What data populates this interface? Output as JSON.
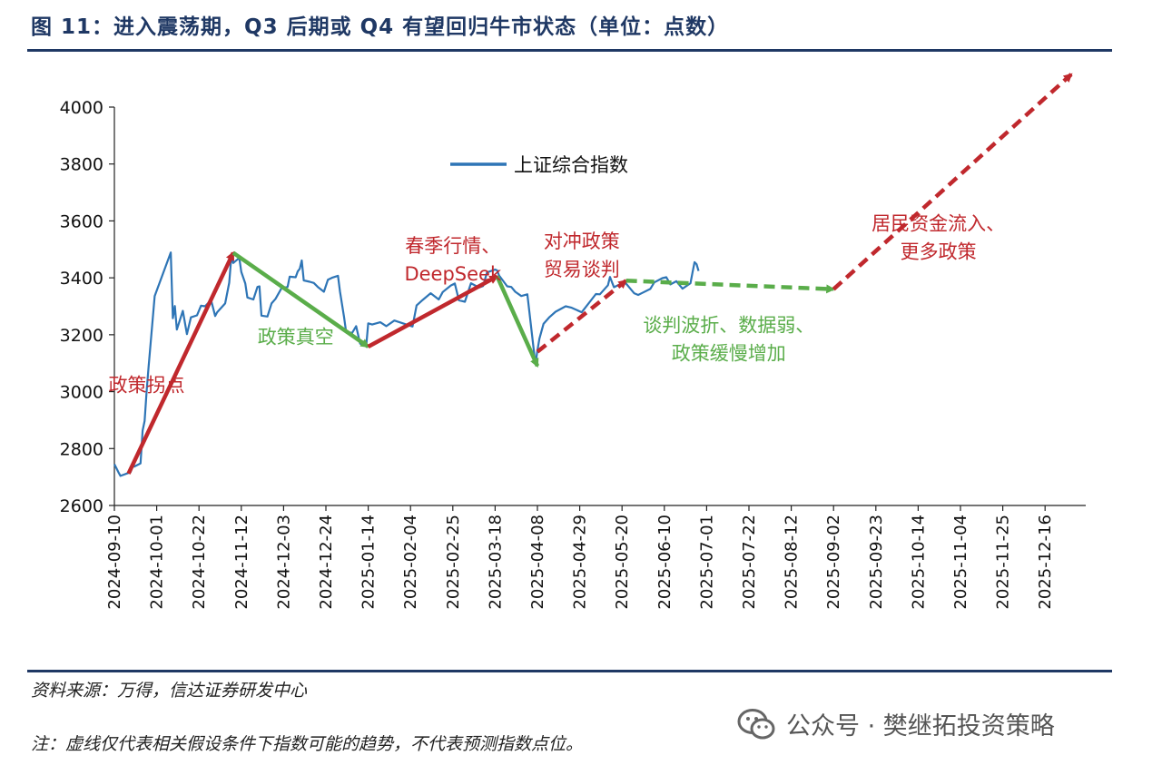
{
  "figure": {
    "title": "图 11：进入震荡期，Q3 后期或 Q4 有望回归牛市状态（单位：点数）",
    "source": "资料来源：万得，信达证券研发中心",
    "note": "注：虚线仅代表相关假设条件下指数可能的趋势，不代表预测指数点位。",
    "watermark": "公众号 · 樊继拓投资策略"
  },
  "chart_data": {
    "type": "line",
    "ylim": [
      2600,
      4000
    ],
    "yticks": [
      2600,
      2800,
      3000,
      3200,
      3400,
      3600,
      3800,
      4000
    ],
    "xticks": [
      "2024-09-10",
      "2024-10-01",
      "2024-10-22",
      "2024-11-12",
      "2024-12-03",
      "2024-12-24",
      "2025-01-14",
      "2025-02-04",
      "2025-02-25",
      "2025-03-18",
      "2025-04-08",
      "2025-04-29",
      "2025-05-20",
      "2025-06-10",
      "2025-07-01",
      "2025-07-22",
      "2025-08-12",
      "2025-09-02",
      "2025-09-23",
      "2025-10-14",
      "2025-11-04",
      "2025-11-25",
      "2025-12-16"
    ],
    "series": [
      {
        "name": "上证综合指数",
        "color": "#2e75b6",
        "points": [
          [
            "2024-09-10",
            2745
          ],
          [
            "2024-09-12",
            2717
          ],
          [
            "2024-09-13",
            2704
          ],
          [
            "2024-09-18",
            2717
          ],
          [
            "2024-09-19",
            2736
          ],
          [
            "2024-09-20",
            2737
          ],
          [
            "2024-09-23",
            2748
          ],
          [
            "2024-09-24",
            2863
          ],
          [
            "2024-09-25",
            2897
          ],
          [
            "2024-09-26",
            3001
          ],
          [
            "2024-09-27",
            3088
          ],
          [
            "2024-09-30",
            3336
          ],
          [
            "2024-10-08",
            3489
          ],
          [
            "2024-10-09",
            3258
          ],
          [
            "2024-10-10",
            3301
          ],
          [
            "2024-10-11",
            3218
          ],
          [
            "2024-10-14",
            3284
          ],
          [
            "2024-10-16",
            3202
          ],
          [
            "2024-10-18",
            3261
          ],
          [
            "2024-10-21",
            3268
          ],
          [
            "2024-10-23",
            3302
          ],
          [
            "2024-10-25",
            3300
          ],
          [
            "2024-10-28",
            3322
          ],
          [
            "2024-10-30",
            3266
          ],
          [
            "2024-10-31",
            3279
          ],
          [
            "2024-11-04",
            3310
          ],
          [
            "2024-11-06",
            3383
          ],
          [
            "2024-11-07",
            3470
          ],
          [
            "2024-11-08",
            3452
          ],
          [
            "2024-11-11",
            3470
          ],
          [
            "2024-11-12",
            3421
          ],
          [
            "2024-11-14",
            3380
          ],
          [
            "2024-11-15",
            3331
          ],
          [
            "2024-11-18",
            3324
          ],
          [
            "2024-11-20",
            3368
          ],
          [
            "2024-11-21",
            3370
          ],
          [
            "2024-11-22",
            3267
          ],
          [
            "2024-11-25",
            3264
          ],
          [
            "2024-11-27",
            3310
          ],
          [
            "2024-11-29",
            3326
          ],
          [
            "2024-12-02",
            3364
          ],
          [
            "2024-12-05",
            3368
          ],
          [
            "2024-12-06",
            3404
          ],
          [
            "2024-12-09",
            3402
          ],
          [
            "2024-12-10",
            3422
          ],
          [
            "2024-12-11",
            3432
          ],
          [
            "2024-12-12",
            3461
          ],
          [
            "2024-12-13",
            3391
          ],
          [
            "2024-12-16",
            3386
          ],
          [
            "2024-12-18",
            3382
          ],
          [
            "2024-12-20",
            3368
          ],
          [
            "2024-12-23",
            3351
          ],
          [
            "2024-12-25",
            3393
          ],
          [
            "2024-12-27",
            3400
          ],
          [
            "2024-12-30",
            3407
          ],
          [
            "2024-12-31",
            3352
          ],
          [
            "2025-01-02",
            3262
          ],
          [
            "2025-01-03",
            3211
          ],
          [
            "2025-01-06",
            3206
          ],
          [
            "2025-01-08",
            3230
          ],
          [
            "2025-01-10",
            3169
          ],
          [
            "2025-01-13",
            3160
          ],
          [
            "2025-01-14",
            3240
          ],
          [
            "2025-01-16",
            3236
          ],
          [
            "2025-01-20",
            3244
          ],
          [
            "2025-01-23",
            3230
          ],
          [
            "2025-01-27",
            3250
          ],
          [
            "2025-02-05",
            3229
          ],
          [
            "2025-02-07",
            3303
          ],
          [
            "2025-02-10",
            3322
          ],
          [
            "2025-02-14",
            3346
          ],
          [
            "2025-02-18",
            3324
          ],
          [
            "2025-02-20",
            3350
          ],
          [
            "2025-02-24",
            3373
          ],
          [
            "2025-02-26",
            3380
          ],
          [
            "2025-02-28",
            3321
          ],
          [
            "2025-03-03",
            3316
          ],
          [
            "2025-03-06",
            3381
          ],
          [
            "2025-03-10",
            3366
          ],
          [
            "2025-03-12",
            3371
          ],
          [
            "2025-03-14",
            3419
          ],
          [
            "2025-03-18",
            3429
          ],
          [
            "2025-03-19",
            3426
          ],
          [
            "2025-03-20",
            3408
          ],
          [
            "2025-03-24",
            3370
          ],
          [
            "2025-03-26",
            3368
          ],
          [
            "2025-03-28",
            3351
          ],
          [
            "2025-03-31",
            3336
          ],
          [
            "2025-04-03",
            3342
          ],
          [
            "2025-04-07",
            3096
          ],
          [
            "2025-04-08",
            3145
          ],
          [
            "2025-04-09",
            3186
          ],
          [
            "2025-04-11",
            3238
          ],
          [
            "2025-04-14",
            3262
          ],
          [
            "2025-04-17",
            3281
          ],
          [
            "2025-04-22",
            3300
          ],
          [
            "2025-04-25",
            3295
          ],
          [
            "2025-04-30",
            3279
          ],
          [
            "2025-05-07",
            3343
          ],
          [
            "2025-05-09",
            3342
          ],
          [
            "2025-05-13",
            3374
          ],
          [
            "2025-05-14",
            3403
          ],
          [
            "2025-05-16",
            3367
          ],
          [
            "2025-05-20",
            3381
          ],
          [
            "2025-05-22",
            3380
          ],
          [
            "2025-05-26",
            3346
          ],
          [
            "2025-05-28",
            3340
          ],
          [
            "2025-05-30",
            3347
          ],
          [
            "2025-06-03",
            3361
          ],
          [
            "2025-06-05",
            3384
          ],
          [
            "2025-06-09",
            3399
          ],
          [
            "2025-06-11",
            3402
          ],
          [
            "2025-06-13",
            3377
          ],
          [
            "2025-06-16",
            3388
          ],
          [
            "2025-06-19",
            3362
          ],
          [
            "2025-06-23",
            3381
          ],
          [
            "2025-06-24",
            3420
          ],
          [
            "2025-06-25",
            3455
          ],
          [
            "2025-06-26",
            3448
          ],
          [
            "2025-06-27",
            3424
          ]
        ]
      }
    ],
    "trend_arrows": [
      {
        "color": "#c0282d",
        "dashed": false,
        "from": [
          "2024-09-17",
          2712
        ],
        "to": [
          "2024-11-08",
          3488
        ]
      },
      {
        "color": "#5aad4a",
        "dashed": false,
        "from": [
          "2024-11-08",
          3488
        ],
        "to": [
          "2025-01-14",
          3158
        ]
      },
      {
        "color": "#c0282d",
        "dashed": false,
        "from": [
          "2025-01-14",
          3158
        ],
        "to": [
          "2025-03-19",
          3405
        ]
      },
      {
        "color": "#5aad4a",
        "dashed": false,
        "from": [
          "2025-03-19",
          3405
        ],
        "to": [
          "2025-04-08",
          3090
        ]
      },
      {
        "color": "#c0282d",
        "dashed": true,
        "from": [
          "2025-04-08",
          3140
        ],
        "to": [
          "2025-05-22",
          3390
        ]
      },
      {
        "color": "#5aad4a",
        "dashed": true,
        "from": [
          "2025-05-22",
          3390
        ],
        "to": [
          "2025-09-02",
          3360
        ]
      },
      {
        "color": "#c0282d",
        "dashed": true,
        "from": [
          "2025-09-02",
          3360
        ],
        "to": [
          "2025-12-29",
          4115
        ]
      }
    ],
    "annotations": [
      {
        "lines": [
          "政策拐点"
        ],
        "color": "#c0282d",
        "at": [
          "2024-09-26",
          3000
        ]
      },
      {
        "lines": [
          "政策真空"
        ],
        "color": "#5aad4a",
        "at": [
          "2024-12-09",
          3170
        ]
      },
      {
        "lines": [
          "春季行情、",
          "DeepSeek"
        ],
        "color": "#c0282d",
        "at": [
          "2025-02-25",
          3490
        ]
      },
      {
        "lines": [
          "对冲政策",
          "贸易谈判"
        ],
        "color": "#c0282d",
        "at": [
          "2025-04-30",
          3505
        ]
      },
      {
        "lines": [
          "谈判波折、数据弱、",
          "政策缓慢增加"
        ],
        "color": "#5aad4a",
        "at": [
          "2025-07-12",
          3210
        ]
      },
      {
        "lines": [
          "居民资金流入、",
          "更多政策"
        ],
        "color": "#c0282d",
        "at": [
          "2025-10-24",
          3568
        ]
      }
    ]
  }
}
